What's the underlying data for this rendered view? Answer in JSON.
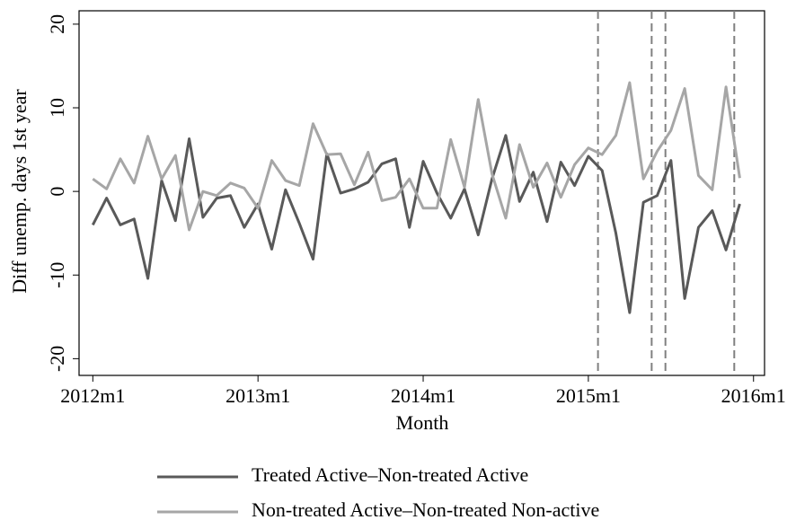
{
  "chart_data": {
    "type": "line",
    "x": [
      624,
      625,
      626,
      627,
      628,
      629,
      630,
      631,
      632,
      633,
      634,
      635,
      636,
      637,
      638,
      639,
      640,
      641,
      642,
      643,
      644,
      645,
      646,
      647,
      648,
      649,
      650,
      651,
      652,
      653,
      654,
      655,
      656,
      657,
      658,
      659,
      660,
      661,
      662,
      663,
      664,
      665,
      666,
      667,
      668,
      669,
      670,
      671
    ],
    "series": [
      {
        "name": "Treated Active–Non-treated Active",
        "color": "#595959",
        "values": [
          -4,
          -0.8,
          -4,
          -3.3,
          -10.4,
          1.3,
          -3.5,
          6.3,
          -3.1,
          -0.8,
          -0.5,
          -4.3,
          -1.5,
          -6.9,
          0.2,
          -3.8,
          -8.1,
          4.5,
          -0.2,
          0.3,
          1.1,
          3.3,
          3.9,
          -4.3,
          3.6,
          -0.2,
          -3.2,
          0.3,
          -5.2,
          1.5,
          6.7,
          -1.2,
          2.3,
          -3.6,
          3.5,
          0.7,
          4.2,
          2.5,
          -5,
          -14.5,
          -1.3,
          -0.5,
          3.7,
          -12.8,
          -4.3,
          -2.3,
          -7,
          -1.5
        ]
      },
      {
        "name": "Non-treated Active–Non-treated Non-active",
        "color": "#a6a6a6",
        "values": [
          1.5,
          0.3,
          3.9,
          1,
          6.6,
          1.5,
          4.3,
          -4.6,
          0,
          -0.5,
          1,
          0.4,
          -2,
          3.7,
          1.3,
          0.7,
          8.1,
          4.4,
          4.5,
          0.8,
          4.7,
          -1.1,
          -0.7,
          1.5,
          -2,
          -2,
          6.2,
          0.5,
          11,
          2.1,
          -3.2,
          5.6,
          0.5,
          3.4,
          -0.7,
          3.2,
          5.2,
          4.4,
          6.7,
          13,
          1.5,
          4.8,
          7.3,
          12.3,
          1.9,
          0.2,
          12.5,
          1.6
        ]
      }
    ],
    "xlabel": "Month",
    "ylabel": "Diff unemp. days 1st year",
    "xlim": [
      623,
      672.8
    ],
    "xticks": [
      {
        "value": 624,
        "label": "2012m1"
      },
      {
        "value": 636,
        "label": "2013m1"
      },
      {
        "value": 648,
        "label": "2014m1"
      },
      {
        "value": 660,
        "label": "2015m1"
      },
      {
        "value": 672,
        "label": "2016m1"
      }
    ],
    "ylim": [
      -22,
      21.6
    ],
    "yticks": [
      -20,
      -10,
      0,
      10,
      20
    ],
    "vlines": [
      660.7,
      664.6,
      665.6,
      670.6
    ],
    "vline_color": "#808080"
  }
}
